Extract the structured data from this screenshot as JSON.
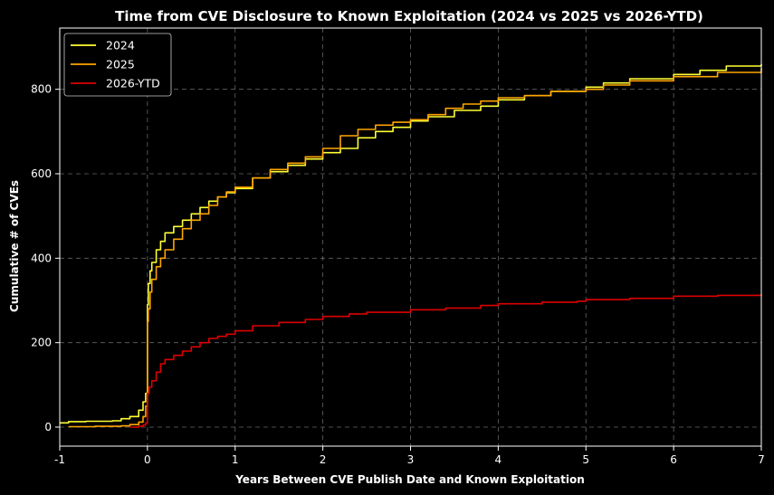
{
  "chart_data": {
    "type": "line",
    "title": "Time from CVE Disclosure to Known Exploitation (2024 vs 2025 vs 2026-YTD)",
    "xlabel": "Years Between CVE Publish Date and Known Exploitation",
    "ylabel": "Cumulative # of CVEs",
    "xlim": [
      -1,
      7
    ],
    "ylim": [
      -45,
      945
    ],
    "xticks": [
      -1,
      0,
      1,
      2,
      3,
      4,
      5,
      6,
      7
    ],
    "xtick_labels": [
      "-1",
      "0",
      "1",
      "2",
      "3",
      "4",
      "5",
      "6",
      "7"
    ],
    "yticks": [
      0,
      200,
      400,
      600,
      800
    ],
    "ytick_labels": [
      "0",
      "200",
      "400",
      "600",
      "800"
    ],
    "grid": true,
    "legend_position": "top-left",
    "background": "#000000",
    "series": [
      {
        "name": "2024",
        "color": "#ffff33",
        "x": [
          -1.0,
          -0.9,
          -0.7,
          -0.4,
          -0.3,
          -0.2,
          -0.1,
          -0.05,
          -0.02,
          0.0,
          0.01,
          0.03,
          0.05,
          0.1,
          0.15,
          0.2,
          0.3,
          0.4,
          0.5,
          0.6,
          0.7,
          0.8,
          0.9,
          1.0,
          1.2,
          1.4,
          1.6,
          1.8,
          2.0,
          2.2,
          2.4,
          2.6,
          2.8,
          3.0,
          3.2,
          3.5,
          3.8,
          4.0,
          4.3,
          4.6,
          5.0,
          5.2,
          5.5,
          6.0,
          6.3,
          6.6,
          7.0
        ],
        "values": [
          10,
          13,
          14,
          15,
          20,
          25,
          40,
          60,
          80,
          290,
          340,
          370,
          390,
          420,
          440,
          460,
          475,
          490,
          505,
          520,
          535,
          545,
          555,
          565,
          590,
          605,
          620,
          635,
          650,
          660,
          685,
          700,
          710,
          725,
          735,
          750,
          760,
          775,
          785,
          795,
          805,
          815,
          825,
          835,
          845,
          855,
          860
        ]
      },
      {
        "name": "2025",
        "color": "#ffa500",
        "x": [
          -0.9,
          -0.6,
          -0.3,
          -0.2,
          -0.1,
          -0.05,
          -0.02,
          0.0,
          0.01,
          0.03,
          0.05,
          0.1,
          0.15,
          0.2,
          0.3,
          0.4,
          0.5,
          0.6,
          0.7,
          0.8,
          0.9,
          1.0,
          1.2,
          1.4,
          1.6,
          1.8,
          2.0,
          2.2,
          2.4,
          2.6,
          2.8,
          3.0,
          3.2,
          3.4,
          3.6,
          3.8,
          4.0,
          4.3,
          4.6,
          5.0,
          5.2,
          5.5,
          6.0,
          6.5,
          7.0
        ],
        "values": [
          1,
          2,
          3,
          6,
          12,
          25,
          50,
          250,
          280,
          320,
          350,
          380,
          400,
          420,
          445,
          470,
          490,
          505,
          525,
          545,
          557,
          568,
          590,
          610,
          625,
          640,
          660,
          690,
          705,
          715,
          722,
          728,
          740,
          755,
          765,
          772,
          780,
          785,
          795,
          800,
          810,
          820,
          830,
          840,
          850
        ]
      },
      {
        "name": "2026-YTD",
        "color": "#dd0000",
        "x": [
          -0.2,
          -0.1,
          -0.05,
          -0.02,
          0.0,
          0.02,
          0.05,
          0.1,
          0.15,
          0.2,
          0.3,
          0.4,
          0.5,
          0.6,
          0.7,
          0.8,
          0.9,
          1.0,
          1.2,
          1.5,
          1.8,
          2.0,
          2.3,
          2.5,
          3.0,
          3.4,
          3.8,
          4.0,
          4.5,
          4.9,
          5.0,
          5.5,
          6.0,
          6.5,
          7.0
        ],
        "values": [
          0,
          2,
          5,
          10,
          80,
          95,
          110,
          130,
          150,
          160,
          170,
          180,
          190,
          200,
          210,
          215,
          220,
          228,
          240,
          248,
          255,
          262,
          268,
          272,
          278,
          282,
          288,
          292,
          296,
          298,
          302,
          305,
          310,
          312,
          315
        ]
      }
    ]
  }
}
